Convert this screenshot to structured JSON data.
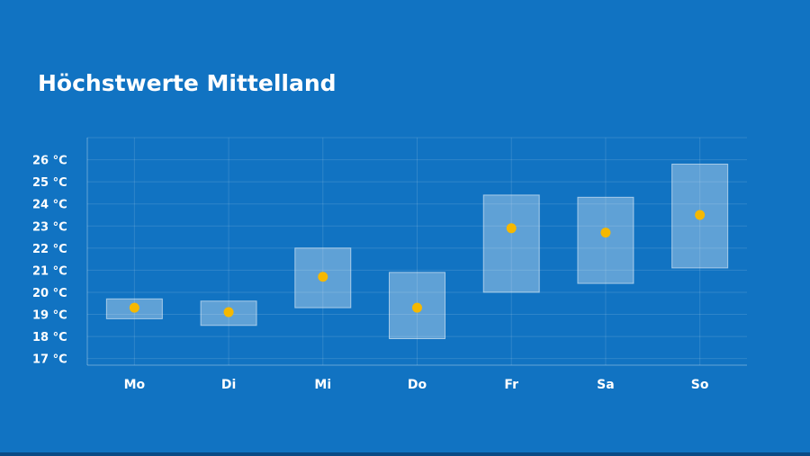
{
  "chart_data": {
    "type": "range-bar-with-point",
    "title": "Höchstwerte Mittelland",
    "unit": "°C",
    "categories": [
      "Mo",
      "Di",
      "Mi",
      "Do",
      "Fr",
      "Sa",
      "So"
    ],
    "y_ticks": [
      17,
      18,
      19,
      20,
      21,
      22,
      23,
      24,
      25,
      26
    ],
    "y_tick_labels": [
      "17 °C",
      "18 °C",
      "19 °C",
      "20 °C",
      "21 °C",
      "22 °C",
      "23 °C",
      "24 °C",
      "25 °C",
      "26 °C"
    ],
    "ylim": [
      16.7,
      27
    ],
    "series": [
      {
        "name": "range_low",
        "values": [
          18.8,
          18.5,
          19.3,
          17.9,
          20.0,
          20.4,
          21.1
        ]
      },
      {
        "name": "range_high",
        "values": [
          19.7,
          19.6,
          22.0,
          20.9,
          24.4,
          24.3,
          25.8
        ]
      },
      {
        "name": "expected",
        "values": [
          19.3,
          19.1,
          20.7,
          19.3,
          22.9,
          22.7,
          23.5
        ]
      }
    ],
    "grid": true,
    "colors": {
      "background": "#1173c2",
      "point": "#f5b800",
      "range": "#ffffff"
    }
  }
}
